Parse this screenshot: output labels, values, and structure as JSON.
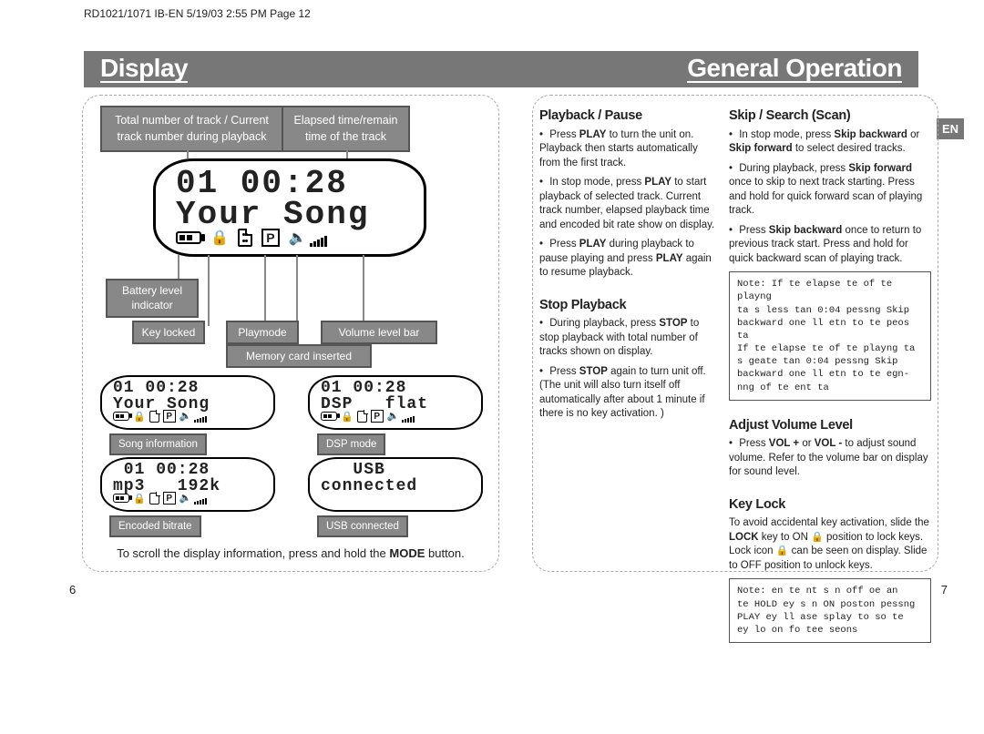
{
  "header": "RD1021/1071 IB-EN  5/19/03  2:55 PM  Page 12",
  "left_title": "Display",
  "right_title": "General Operation",
  "en_tab": "EN",
  "page_left": "6",
  "page_right": "7",
  "callouts": {
    "top_a": "Total number of track / Current track number during playback",
    "top_b": "Elapsed time/remain time of the track",
    "battery": "Battery level indicator",
    "keylocked": "Key locked",
    "playmode": "Playmode",
    "volume": "Volume level bar",
    "memory": "Memory card inserted"
  },
  "big_lcd": {
    "line1": "01 00:28",
    "line2": "Your Song"
  },
  "mini_lcds": [
    {
      "line1": "01 00:28",
      "line2": "Your Song",
      "caption": "Song information"
    },
    {
      "line1": "01 00:28",
      "line2": "DSP   flat",
      "caption": "DSP mode"
    },
    {
      "line1": " 01 00:28",
      "line2": "mp3   192k",
      "caption": "Encoded bitrate"
    },
    {
      "line1": "   USB",
      "line2": "connected",
      "caption": "USB connected"
    }
  ],
  "bottom_note_pre": "To scroll the display information, press and hold the ",
  "bottom_note_bold": "MODE",
  "bottom_note_post": " button.",
  "right": {
    "playback": {
      "heading": "Playback / Pause",
      "p1a": "Press ",
      "p1b": "PLAY",
      "p1c": " to turn the unit on. Playback then starts automatically from the first track.",
      "p2a": "In stop mode, press ",
      "p2b": "PLAY",
      "p2c": " to start playback of selected track. Current track number, elapsed playback time and encoded bit rate show on display.",
      "p3a": "Press ",
      "p3b": "PLAY",
      "p3c": " during playback to pause playing and press ",
      "p3d": "PLAY",
      "p3e": " again to resume playback."
    },
    "stop": {
      "heading": "Stop Playback",
      "p1a": "During playback, press ",
      "p1b": "STOP",
      "p1c": " to stop playback with total number of tracks shown on display.",
      "p2a": "Press ",
      "p2b": "STOP",
      "p2c": " again to turn unit off. (The unit will also turn itself off automatically after about 1 minute if there is no key activation. )"
    },
    "skip": {
      "heading": "Skip / Search (Scan)",
      "p1a": "In stop mode, press ",
      "p1b": "Skip backward",
      "p1c": " or ",
      "p1d": "Skip forward",
      "p1e": " to select desired tracks.",
      "p2a": "During playback, press ",
      "p2b": "Skip forward",
      "p2c": " once to skip to next track starting. Press and hold for quick forward scan of playing track.",
      "p3a": "Press ",
      "p3b": "Skip backward",
      "p3c": " once to return to previous track start. Press and hold for quick backward scan of playing track.",
      "note": "Note: If te elapse te of te playng\nta s less tan 0:04 pessng Skip\nbackward one ll etn to te peos\nta\nIf te elapse te of te playng ta\ns geate tan 0:04 pessng Skip\nbackward one ll etn to te egn-\nnng of te ent ta"
    },
    "vol": {
      "heading": "Adjust Volume Level",
      "p1a": "Press ",
      "p1b": "VOL +",
      "p1c": " or ",
      "p1d": "VOL -",
      "p1e": " to adjust sound volume. Refer to the volume bar on display for sound level."
    },
    "keylock": {
      "heading": "Key Lock",
      "p1a": "To avoid accidental key activation, slide the ",
      "p1b": "LOCK",
      "p1c": " key to ON ",
      "p1d": " position to lock keys. Lock icon ",
      "p1e": " can be seen on display. Slide to OFF position to unlock keys.",
      "note": "Note: en te nt s n off oe an\nte HOLD ey s n ON poston pessng\nPLAY ey ll ase splay to so te\ney lo on fo tee seons"
    }
  }
}
